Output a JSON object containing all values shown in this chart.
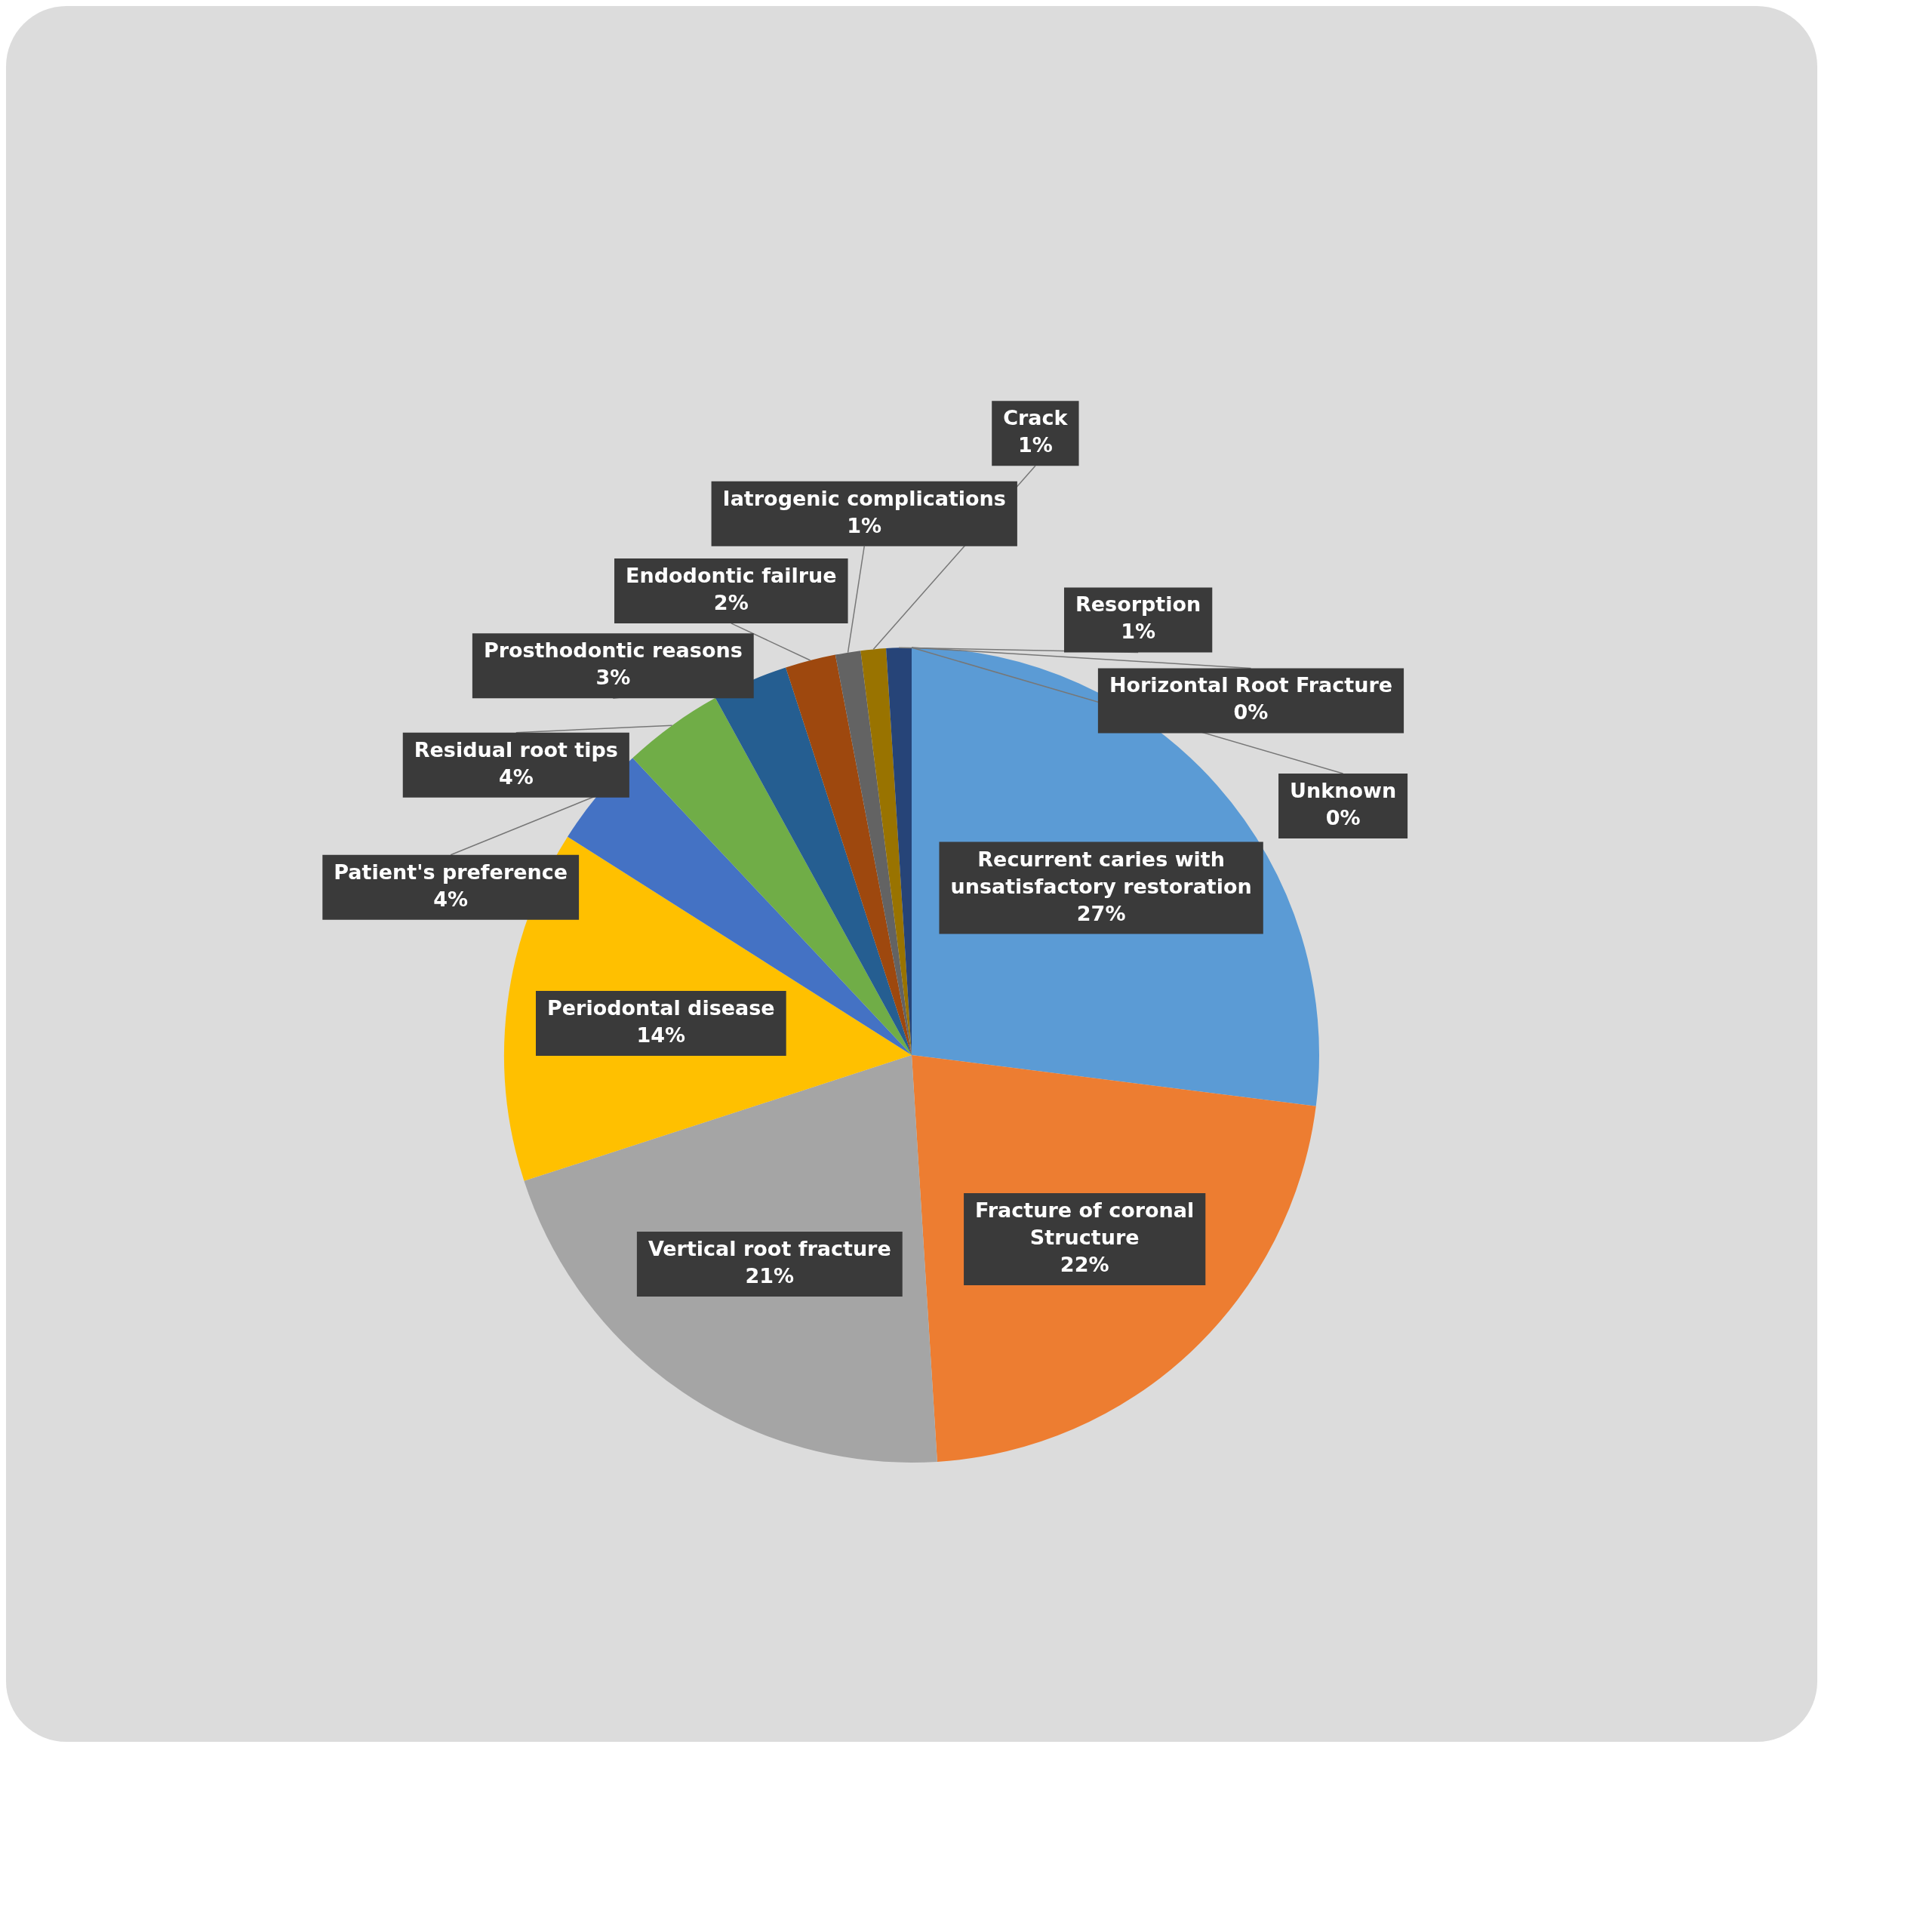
{
  "chart_data": {
    "type": "pie",
    "categories": [
      "Recurrent caries with unsatisfactory restoration",
      "Fracture of coronal Structure",
      "Vertical root fracture",
      "Periodontal disease",
      "Patient's preference",
      "Residual root tips",
      "Prosthodontic reasons",
      "Endodontic failrue",
      "Iatrogenic complications",
      "Crack",
      "Resorption",
      "Horizontal Root Fracture",
      "Unknown"
    ],
    "values": [
      27,
      22,
      21,
      14,
      4,
      4,
      3,
      2,
      1,
      1,
      1,
      0,
      0
    ],
    "value_labels": [
      "27%",
      "22%",
      "21%",
      "14%",
      "4%",
      "4%",
      "3%",
      "2%",
      "1%",
      "1%",
      "1%",
      "0%",
      "0%"
    ],
    "colors": [
      "#5b9bd5",
      "#ed7d31",
      "#a5a5a5",
      "#ffc000",
      "#4472c4",
      "#70ad47",
      "#255e91",
      "#9e480e",
      "#636363",
      "#997300",
      "#264478",
      "#43682b",
      "#698ed0"
    ]
  }
}
